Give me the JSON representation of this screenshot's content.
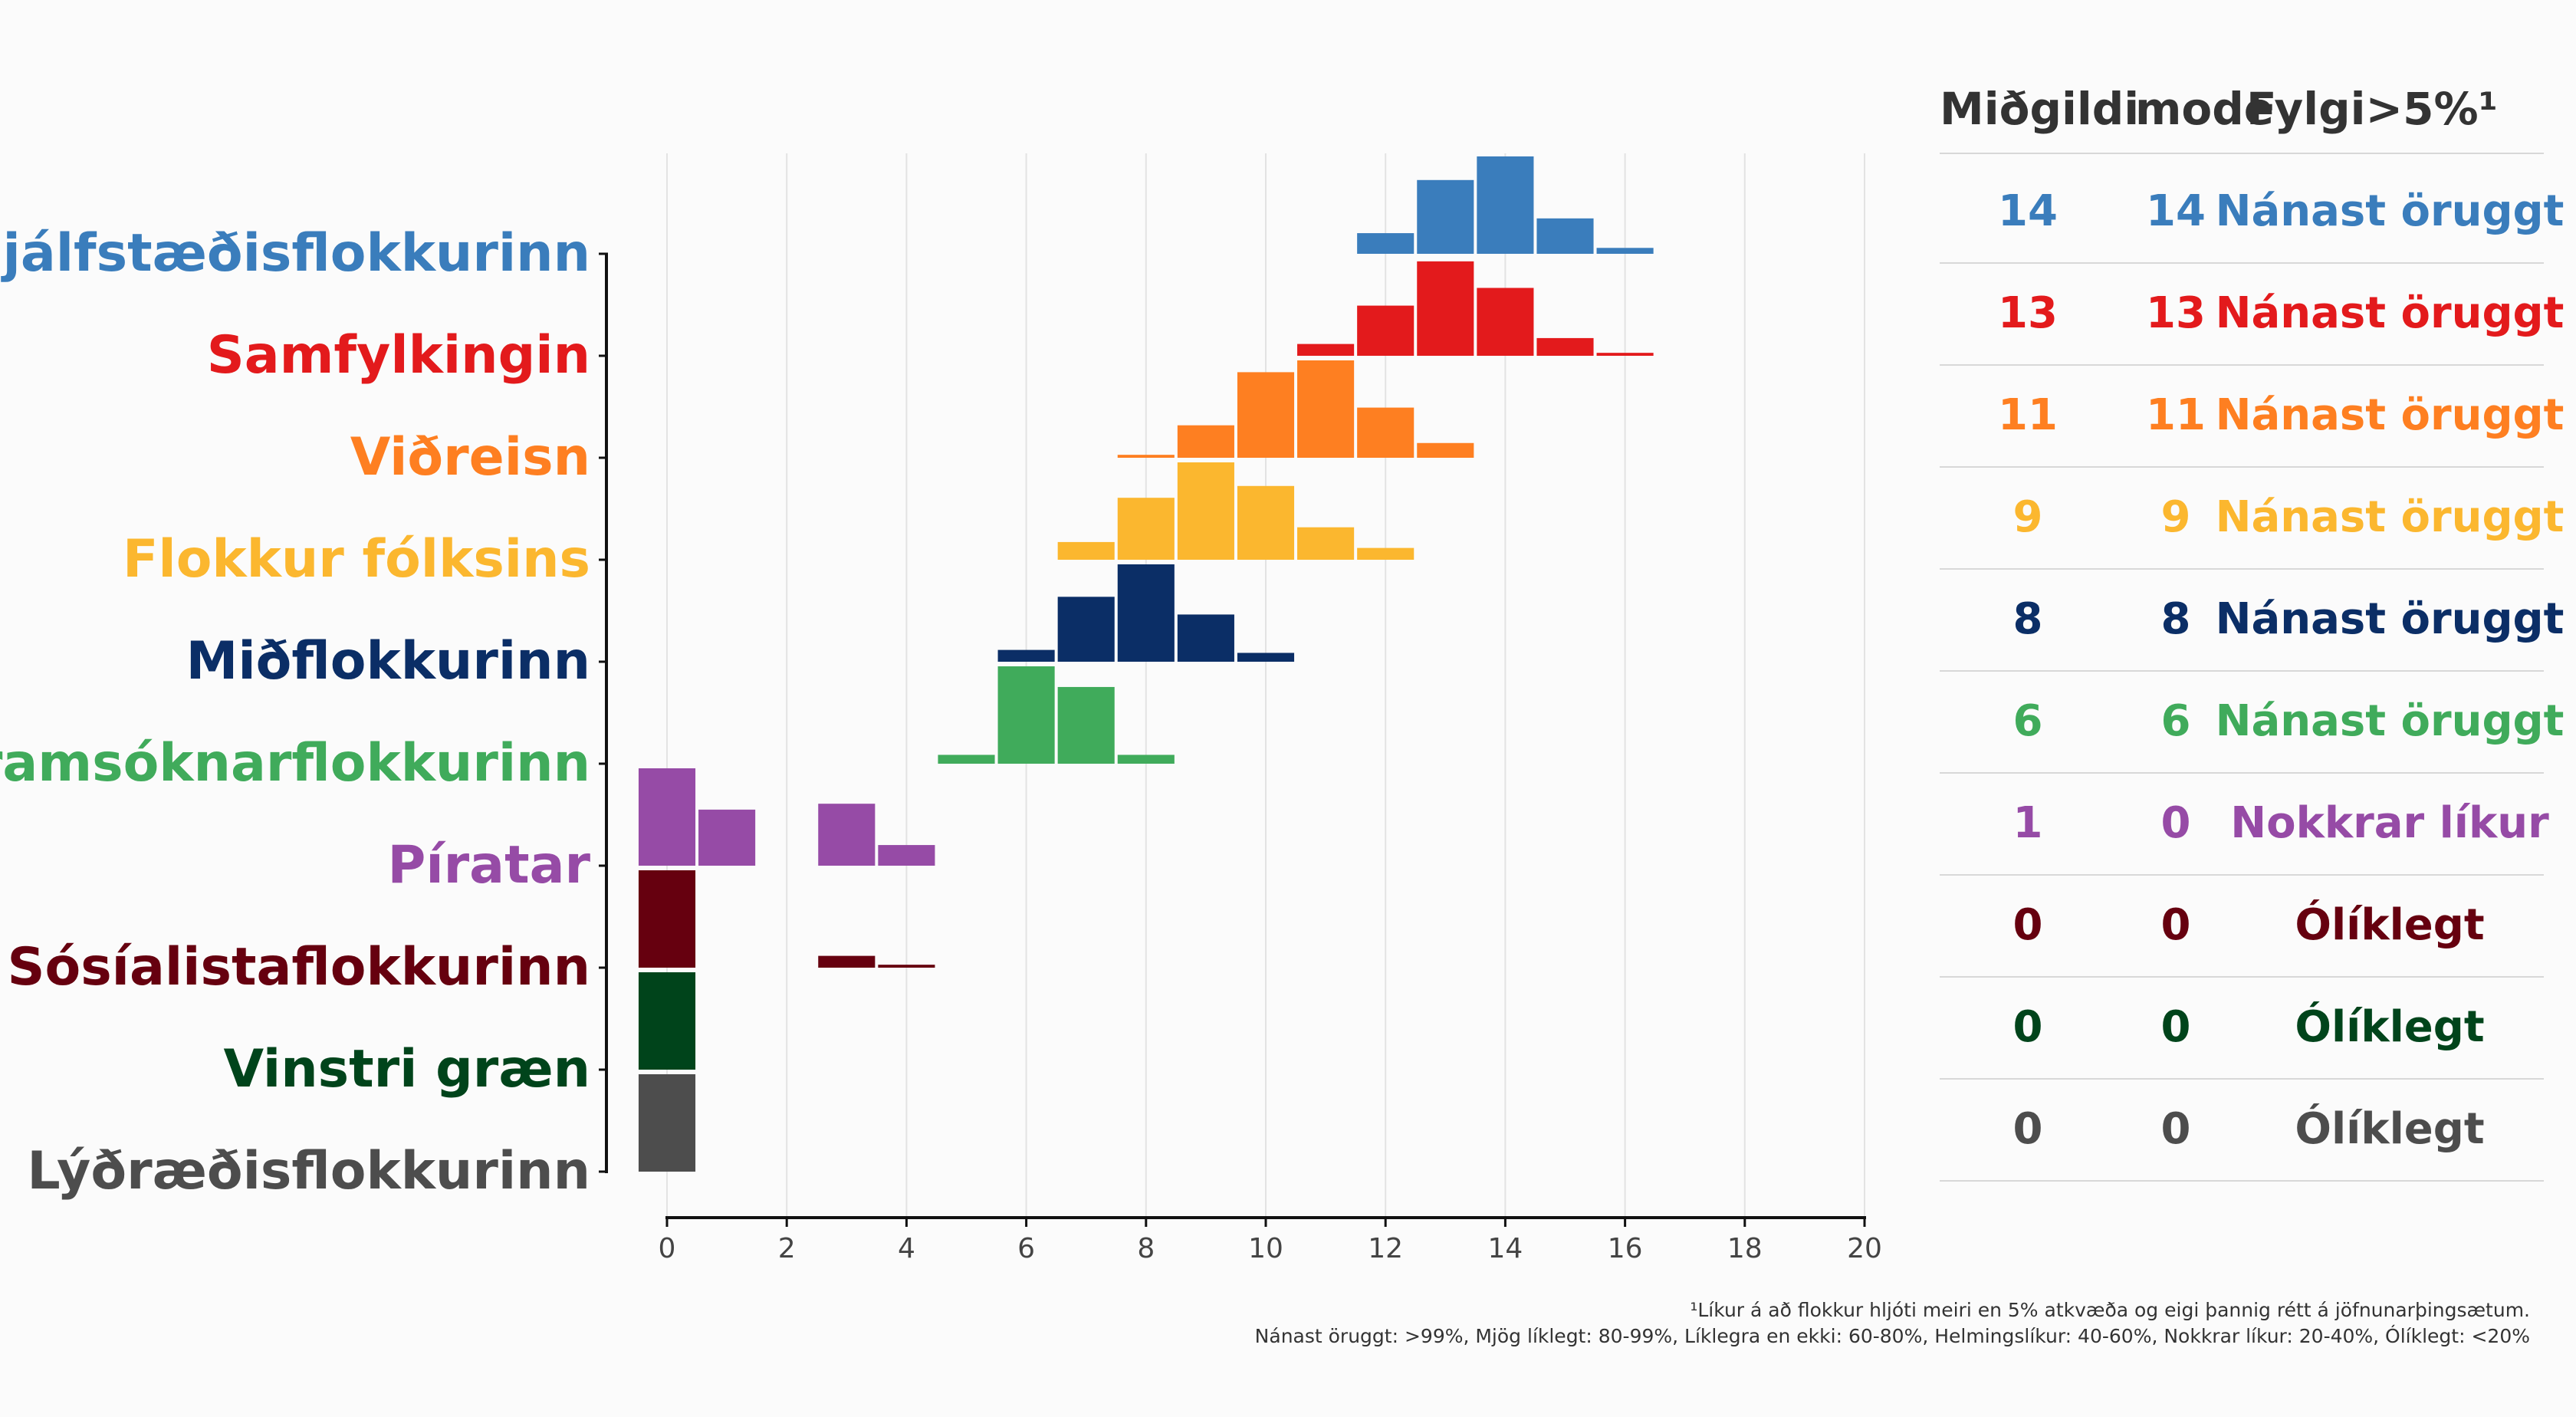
{
  "chart_data": {
    "type": "bar",
    "xlim": [
      0,
      20
    ],
    "xticks": [
      0,
      2,
      4,
      6,
      8,
      10,
      12,
      14,
      16,
      18,
      20
    ],
    "grid": true,
    "table_headers": {
      "median": "Miðgildi",
      "mode": "mode",
      "threshold": "Fylgi>5%¹"
    },
    "footnote_line1": "¹Líkur á að flokkur hljóti meiri en 5% atkvæða og eigi þannig rétt á jöfnunarþingsætum.",
    "footnote_line2": "Nánast öruggt: >99%, Mjög líklegt: 80-99%, Líklegra en ekki: 60-80%, Helmingslíkur: 40-60%, Nokkrar líkur: 20-40%, Ólíklegt: <20%",
    "parties": [
      {
        "name": "Sjálfstæðisflokkurinn",
        "color": "#3a7dbc",
        "median": "14",
        "mode": "14",
        "threshold": "Nánast öruggt",
        "bins": [
          {
            "x": 12,
            "p": 0.07
          },
          {
            "x": 13,
            "p": 0.25
          },
          {
            "x": 14,
            "p": 0.33
          },
          {
            "x": 15,
            "p": 0.12
          },
          {
            "x": 16,
            "p": 0.02
          }
        ]
      },
      {
        "name": "Samfylkingin",
        "color": "#e31a1c",
        "median": "13",
        "mode": "13",
        "threshold": "Nánast öruggt",
        "bins": [
          {
            "x": 11,
            "p": 0.04
          },
          {
            "x": 12,
            "p": 0.17
          },
          {
            "x": 13,
            "p": 0.32
          },
          {
            "x": 14,
            "p": 0.23
          },
          {
            "x": 15,
            "p": 0.06
          },
          {
            "x": 16,
            "p": 0.01
          }
        ]
      },
      {
        "name": "Viðreisn",
        "color": "#fe7f21",
        "median": "11",
        "mode": "11",
        "threshold": "Nánast öruggt",
        "bins": [
          {
            "x": 8,
            "p": 0.01
          },
          {
            "x": 9,
            "p": 0.11
          },
          {
            "x": 10,
            "p": 0.29
          },
          {
            "x": 11,
            "p": 0.33
          },
          {
            "x": 12,
            "p": 0.17
          },
          {
            "x": 13,
            "p": 0.05
          }
        ]
      },
      {
        "name": "Flokkur fólksins",
        "color": "#fbb72f",
        "median": "9",
        "mode": "9",
        "threshold": "Nánast öruggt",
        "bins": [
          {
            "x": 7,
            "p": 0.06
          },
          {
            "x": 8,
            "p": 0.21
          },
          {
            "x": 9,
            "p": 0.33
          },
          {
            "x": 10,
            "p": 0.25
          },
          {
            "x": 11,
            "p": 0.11
          },
          {
            "x": 12,
            "p": 0.04
          }
        ]
      },
      {
        "name": "Miðflokkurinn",
        "color": "#0b2e66",
        "median": "8",
        "mode": "8",
        "threshold": "Nánast öruggt",
        "bins": [
          {
            "x": 6,
            "p": 0.04
          },
          {
            "x": 7,
            "p": 0.22
          },
          {
            "x": 8,
            "p": 0.33
          },
          {
            "x": 9,
            "p": 0.16
          },
          {
            "x": 10,
            "p": 0.03
          }
        ]
      },
      {
        "name": "Framsóknarflokkurinn",
        "color": "#40ab5b",
        "median": "6",
        "mode": "6",
        "threshold": "Nánast öruggt",
        "bins": [
          {
            "x": 5,
            "p": 0.03
          },
          {
            "x": 6,
            "p": 0.33
          },
          {
            "x": 7,
            "p": 0.26
          },
          {
            "x": 8,
            "p": 0.03
          }
        ]
      },
      {
        "name": "Píratar",
        "color": "#964ba6",
        "median": "1",
        "mode": "0",
        "threshold": "Nokkrar líkur",
        "bins": [
          {
            "x": 0,
            "p": 0.33
          },
          {
            "x": 1,
            "p": 0.19
          },
          {
            "x": 3,
            "p": 0.21
          },
          {
            "x": 4,
            "p": 0.07
          }
        ]
      },
      {
        "name": "Sósíalistaflokkurinn",
        "color": "#66000f",
        "median": "0",
        "mode": "0",
        "threshold": "Ólíklegt",
        "bins": [
          {
            "x": 0,
            "p": 0.33
          },
          {
            "x": 3,
            "p": 0.04
          },
          {
            "x": 4,
            "p": 0.01
          }
        ]
      },
      {
        "name": "Vinstri græn",
        "color": "#00441b",
        "median": "0",
        "mode": "0",
        "threshold": "Ólíklegt",
        "bins": [
          {
            "x": 0,
            "p": 0.33
          }
        ]
      },
      {
        "name": "Lýðræðisflokkurinn",
        "color": "#4d4d4d",
        "median": "0",
        "mode": "0",
        "threshold": "Ólíklegt",
        "bins": [
          {
            "x": 0,
            "p": 0.33
          }
        ]
      }
    ]
  }
}
